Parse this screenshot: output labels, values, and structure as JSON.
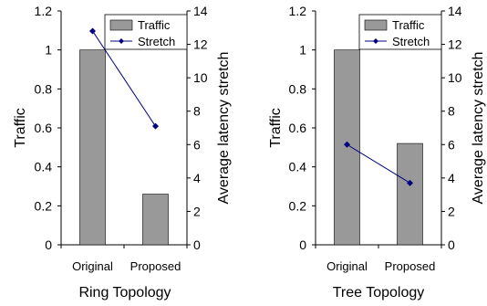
{
  "chart_data": [
    {
      "type": "bar",
      "categories": [
        "Original",
        "Proposed"
      ],
      "series": [
        {
          "name": "Traffic",
          "kind": "bar",
          "axis": "left",
          "values": [
            1.0,
            0.26
          ]
        },
        {
          "name": "Stretch",
          "kind": "line",
          "axis": "right",
          "values": [
            12.8,
            7.1
          ]
        }
      ],
      "ylabel": "Traffic",
      "y2label": "Average latency stretch",
      "ylim": [
        0,
        1.2
      ],
      "y2lim": [
        0,
        14
      ],
      "yticks": [
        "0",
        "0.2",
        "0.4",
        "0.6",
        "0.8",
        "1",
        "1.2"
      ],
      "y2ticks": [
        "0",
        "2",
        "4",
        "6",
        "8",
        "10",
        "12",
        "14"
      ],
      "caption": "Ring Topology",
      "legend": "top-right",
      "grid": false
    },
    {
      "type": "bar",
      "categories": [
        "Original",
        "Proposed"
      ],
      "series": [
        {
          "name": "Traffic",
          "kind": "bar",
          "axis": "left",
          "values": [
            1.0,
            0.52
          ]
        },
        {
          "name": "Stretch",
          "kind": "line",
          "axis": "right",
          "values": [
            6.0,
            3.7
          ]
        }
      ],
      "ylabel": "Traffic",
      "y2label": "Average latency stretch",
      "ylim": [
        0,
        1.2
      ],
      "y2lim": [
        0,
        14
      ],
      "yticks": [
        "0",
        "0.2",
        "0.4",
        "0.6",
        "0.8",
        "1",
        "1.2"
      ],
      "y2ticks": [
        "0",
        "2",
        "4",
        "6",
        "8",
        "10",
        "12",
        "14"
      ],
      "caption": "Tree Topology",
      "legend": "top-right",
      "grid": false
    }
  ],
  "colors": {
    "bar_fill": "#999999",
    "bar_stroke": "#000000",
    "line": "#000080",
    "axis": "#000000"
  }
}
